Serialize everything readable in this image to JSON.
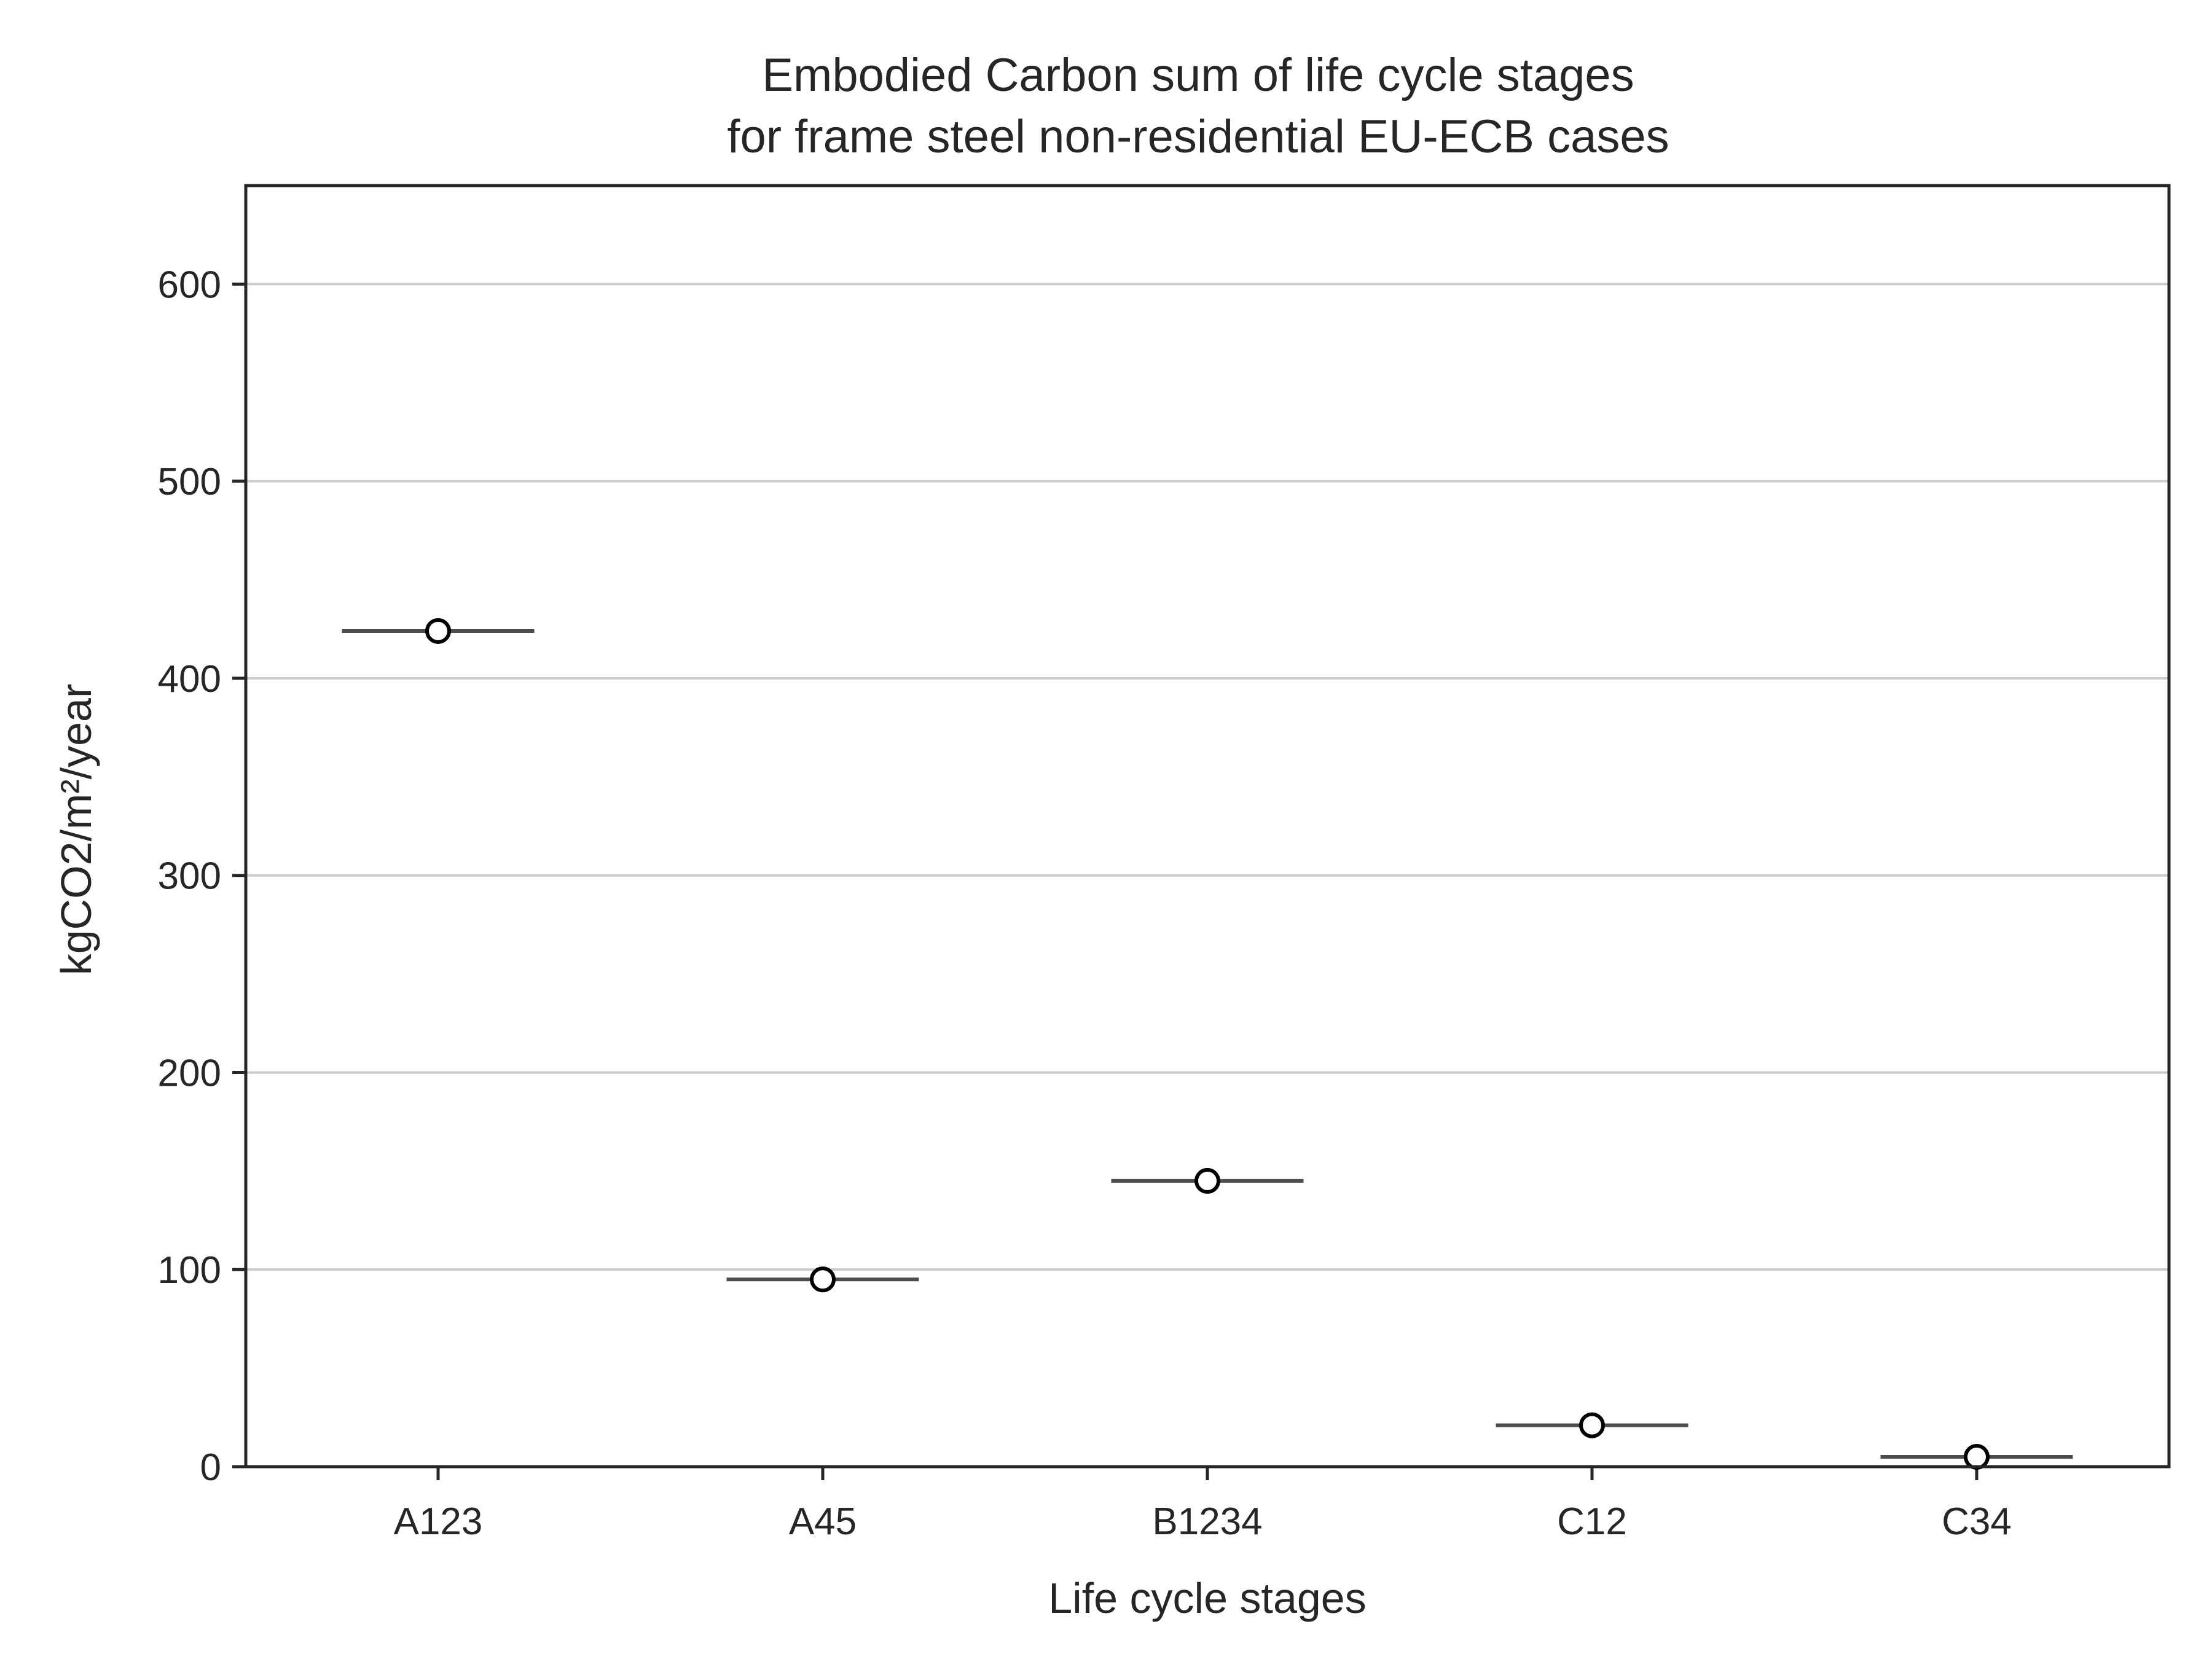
{
  "chart_data": {
    "type": "box",
    "title_lines": [
      "Embodied Carbon sum of life cycle stages",
      "for frame steel non-residential EU-ECB cases"
    ],
    "xlabel": "Life cycle stages",
    "ylabel": "kgCO2/m²/year",
    "categories": [
      "A123",
      "A45",
      "B1234",
      "C12",
      "C34"
    ],
    "values": [
      424,
      95,
      145,
      21,
      5
    ],
    "ylim": [
      0,
      650
    ],
    "yticks": [
      0,
      100,
      200,
      300,
      400,
      500,
      600
    ],
    "grid": "horizontal",
    "legend": "none",
    "colors": {
      "grid": "#cccccc",
      "frame": "#262626",
      "median_line": "#4d4d4d",
      "marker_fill": "#ffffff",
      "marker_edge": "#000000"
    }
  }
}
